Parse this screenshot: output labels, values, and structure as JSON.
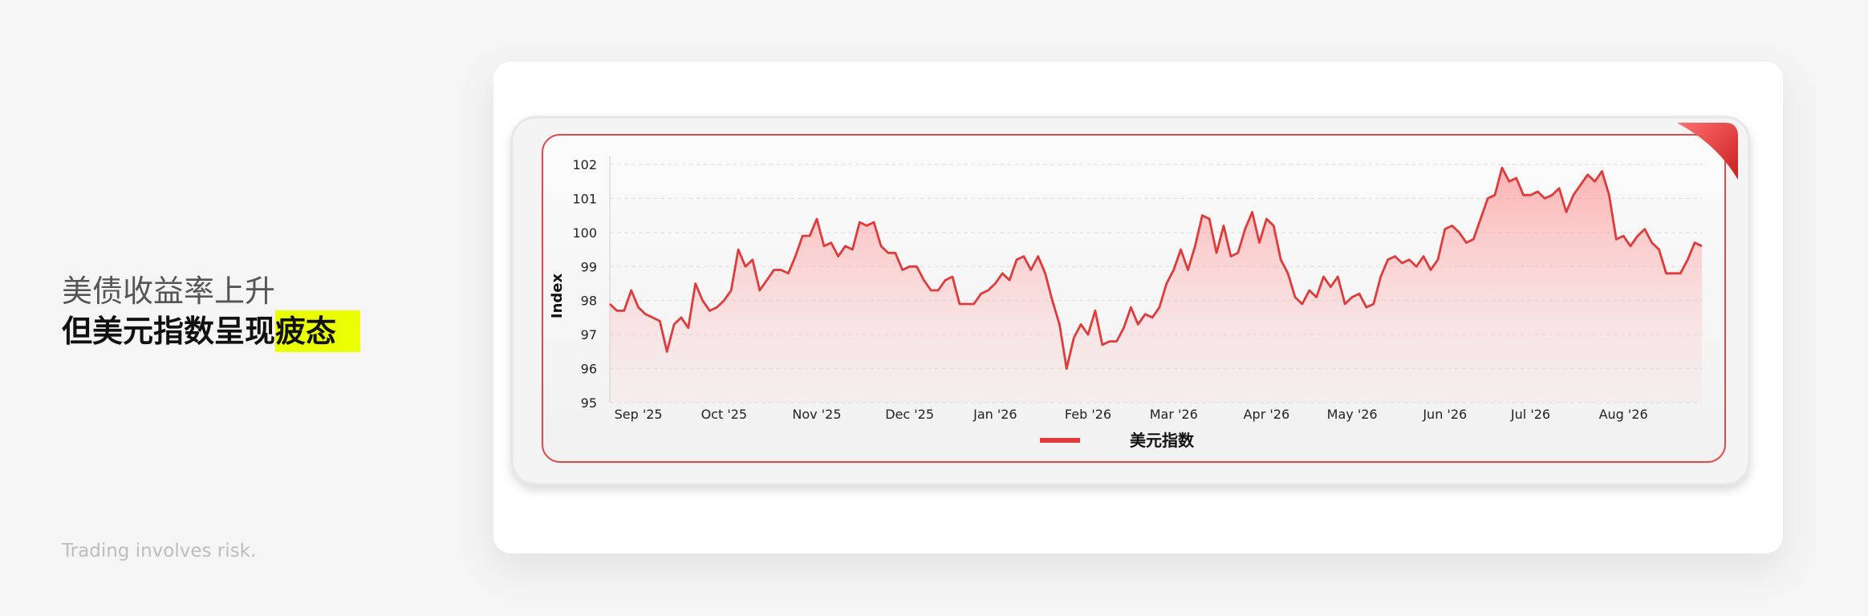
{
  "headline": {
    "line1": "美债收益率上升",
    "line2": "但美元指数呈现",
    "highlight": "疲态"
  },
  "disclaimer": "Trading involves risk.",
  "chart_data": {
    "type": "line",
    "y_label": "Index",
    "categories": [
      null,
      null,
      null,
      null,
      "Sep '25",
      null,
      null,
      null,
      null,
      null,
      null,
      null,
      null,
      null,
      null,
      null,
      "Oct '25",
      null,
      null,
      null,
      null,
      null,
      null,
      null,
      null,
      null,
      null,
      null,
      null,
      "Nov '25",
      null,
      null,
      null,
      null,
      null,
      null,
      null,
      null,
      null,
      null,
      null,
      null,
      "Dec '25",
      null,
      null,
      null,
      null,
      null,
      null,
      null,
      null,
      null,
      null,
      null,
      "Jan '26",
      null,
      null,
      null,
      null,
      null,
      null,
      null,
      null,
      null,
      null,
      null,
      null,
      "Feb '26",
      null,
      null,
      null,
      null,
      null,
      null,
      null,
      null,
      null,
      null,
      null,
      "Mar '26",
      null,
      null,
      null,
      null,
      null,
      null,
      null,
      null,
      null,
      null,
      null,
      null,
      "Apr '26",
      null,
      null,
      null,
      null,
      null,
      null,
      null,
      null,
      null,
      null,
      null,
      "May '26",
      null,
      null,
      null,
      null,
      null,
      null,
      null,
      null,
      null,
      null,
      null,
      null,
      "Jun '26",
      null,
      null,
      null,
      null,
      null,
      null,
      null,
      null,
      null,
      null,
      null,
      "Jul '26",
      null,
      null,
      null,
      null,
      null,
      null,
      null,
      null,
      null,
      null,
      null,
      null,
      "Aug '26",
      null,
      null,
      null,
      null,
      null,
      null,
      null,
      null,
      null,
      null,
      null
    ],
    "series": [
      {
        "name": "美元指数",
        "color": "#e03a3a",
        "values": [
          97.9,
          97.7,
          97.7,
          98.3,
          97.8,
          97.6,
          97.5,
          97.4,
          96.5,
          97.3,
          97.5,
          97.2,
          98.5,
          98.0,
          97.7,
          97.8,
          98.0,
          98.3,
          99.5,
          99.0,
          99.2,
          98.3,
          98.6,
          98.9,
          98.9,
          98.8,
          99.3,
          99.9,
          99.9,
          100.4,
          99.6,
          99.7,
          99.3,
          99.6,
          99.5,
          100.3,
          100.2,
          100.3,
          99.6,
          99.4,
          99.4,
          98.9,
          99.0,
          99.0,
          98.6,
          98.3,
          98.3,
          98.6,
          98.7,
          97.9,
          97.9,
          97.9,
          98.2,
          98.3,
          98.5,
          98.8,
          98.6,
          99.2,
          99.3,
          98.9,
          99.3,
          98.8,
          98.0,
          97.3,
          96.0,
          96.9,
          97.3,
          97.0,
          97.7,
          96.7,
          96.8,
          96.8,
          97.2,
          97.8,
          97.3,
          97.6,
          97.5,
          97.8,
          98.5,
          98.9,
          99.5,
          98.9,
          99.6,
          100.5,
          100.4,
          99.4,
          100.2,
          99.3,
          99.4,
          100.1,
          100.6,
          99.7,
          100.4,
          100.2,
          99.2,
          98.8,
          98.1,
          97.9,
          98.3,
          98.1,
          98.7,
          98.4,
          98.7,
          97.9,
          98.1,
          98.2,
          97.8,
          97.9,
          98.7,
          99.2,
          99.3,
          99.1,
          99.2,
          99.0,
          99.3,
          98.9,
          99.2,
          100.1,
          100.2,
          100.0,
          99.7,
          99.8,
          100.4,
          101.0,
          101.1,
          101.9,
          101.5,
          101.6,
          101.1,
          101.1,
          101.2,
          101.0,
          101.1,
          101.3,
          100.6,
          101.1,
          101.4,
          101.7,
          101.5,
          101.8,
          101.1,
          99.8,
          99.9,
          99.6,
          99.9,
          100.1,
          99.7,
          99.5,
          98.8,
          98.8,
          98.8,
          99.2,
          99.7,
          99.6
        ]
      }
    ],
    "ylim": [
      95,
      102
    ],
    "yticks": [
      95,
      96,
      97,
      98,
      99,
      100,
      101,
      102
    ],
    "grid": true
  }
}
